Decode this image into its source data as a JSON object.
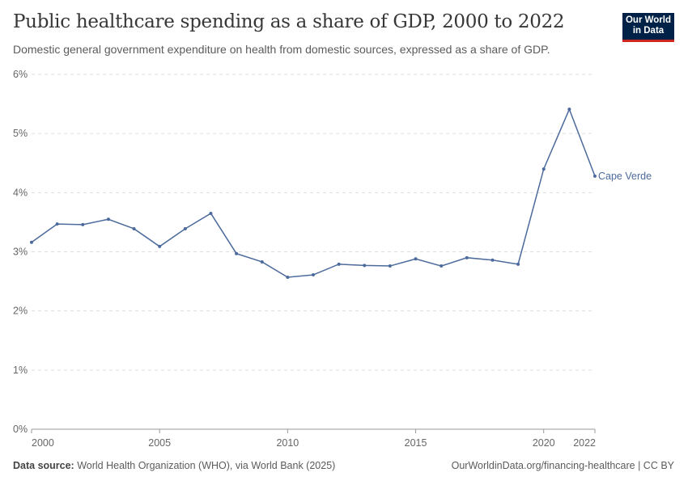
{
  "header": {
    "title": "Public healthcare spending as a share of GDP, 2000 to 2022",
    "subtitle": "Domestic general government expenditure on health from domestic sources, expressed as a share of GDP.",
    "logo": "Our World in Data"
  },
  "footer": {
    "source_label": "Data source:",
    "source": "World Health Organization (WHO), via World Bank (2025)",
    "url": "OurWorldinData.org/financing-healthcare | CC BY"
  },
  "chart_data": {
    "type": "line",
    "title": "Public healthcare spending as a share of GDP, 2000 to 2022",
    "ylim": [
      0,
      6
    ],
    "yticks": [
      0,
      1,
      2,
      3,
      4,
      5,
      6
    ],
    "ytick_labels": [
      "0%",
      "1%",
      "2%",
      "3%",
      "4%",
      "5%",
      "6%"
    ],
    "xlim": [
      2000,
      2022
    ],
    "xticks": [
      2000,
      2005,
      2010,
      2015,
      2020,
      2022
    ],
    "xtick_labels": [
      "2000",
      "2005",
      "2010",
      "2015",
      "2020",
      "2022"
    ],
    "grid": "horizontal dashed",
    "colors": {
      "series": "#4c6a9c"
    },
    "x": [
      2000,
      2001,
      2002,
      2003,
      2004,
      2005,
      2006,
      2007,
      2008,
      2009,
      2010,
      2011,
      2012,
      2013,
      2014,
      2015,
      2016,
      2017,
      2018,
      2019,
      2020,
      2021,
      2022
    ],
    "series": [
      {
        "name": "Cape Verde",
        "values": [
          3.16,
          3.47,
          3.46,
          3.55,
          3.39,
          3.09,
          3.39,
          3.65,
          2.97,
          2.83,
          2.57,
          2.61,
          2.79,
          2.77,
          2.76,
          2.88,
          2.76,
          2.9,
          2.86,
          2.79,
          4.4,
          5.41,
          4.28
        ]
      }
    ]
  }
}
